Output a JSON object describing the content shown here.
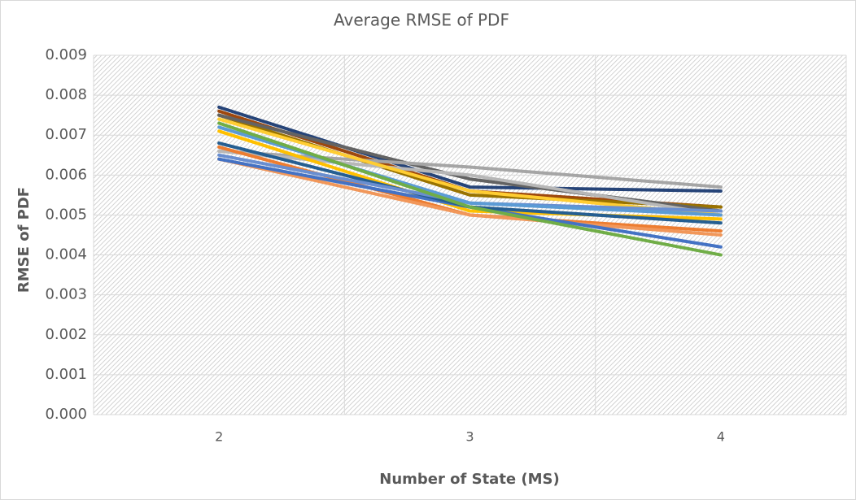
{
  "chart_data": {
    "type": "line",
    "title": "Average RMSE of PDF",
    "x_label": "Number of State (MS)",
    "y_label": "RMSE of PDF",
    "categories": [
      "2",
      "3",
      "4"
    ],
    "series": [
      {
        "color": "#264478",
        "values": [
          0.0077,
          0.0057,
          0.0056
        ]
      },
      {
        "color": "#9E480E",
        "values": [
          0.0076,
          0.0056,
          0.0052
        ]
      },
      {
        "color": "#997300",
        "values": [
          0.0075,
          0.0055,
          0.0052
        ]
      },
      {
        "color": "#636363",
        "values": [
          0.0075,
          0.0059,
          0.0051
        ]
      },
      {
        "color": "#A5A5A5",
        "values": [
          0.0066,
          0.0062,
          0.0057
        ]
      },
      {
        "color": "#B7B7B7",
        "values": [
          0.0066,
          0.006,
          0.005
        ]
      },
      {
        "color": "#FFCD33",
        "values": [
          0.0074,
          0.0056,
          0.005
        ]
      },
      {
        "color": "#FFC000",
        "values": [
          0.0071,
          0.0051,
          0.0049
        ]
      },
      {
        "color": "#ED7D31",
        "values": [
          0.0067,
          0.005,
          0.0046
        ]
      },
      {
        "color": "#F1975A",
        "values": [
          0.0064,
          0.005,
          0.0045
        ]
      },
      {
        "color": "#4472C4",
        "values": [
          0.0064,
          0.0052,
          0.0042
        ]
      },
      {
        "color": "#255E91",
        "values": [
          0.0068,
          0.0052,
          0.0048
        ]
      },
      {
        "color": "#698ED0",
        "values": [
          0.0065,
          0.0053,
          0.0051
        ]
      },
      {
        "color": "#5B9BD5",
        "values": [
          0.0072,
          0.0053,
          0.005
        ]
      },
      {
        "color": "#70AD47",
        "values": [
          0.0073,
          0.0052,
          0.004
        ]
      }
    ],
    "ylim": [
      0,
      0.009
    ],
    "yticks": [
      {
        "value": 0,
        "label": "0.000"
      },
      0.001,
      0.002,
      0.003,
      0.004,
      0.005,
      0.006,
      0.007,
      0.008,
      0.009
    ],
    "grid": true
  }
}
